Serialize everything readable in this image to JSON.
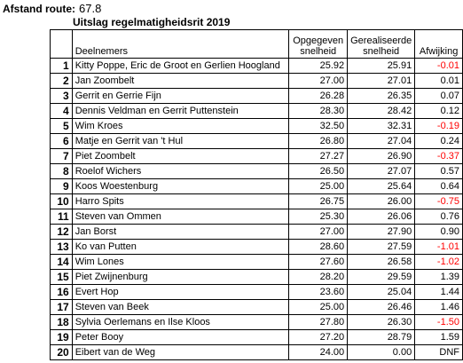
{
  "route": {
    "label": "Afstand route:",
    "value": "67.8"
  },
  "title": "Uitslag regelmatigheidsrit 2019",
  "headers": {
    "participants": "Deelnemers",
    "given_line1": "Opgegeven",
    "given_line2": "snelheid",
    "realized_line1": "Gerealiseerde",
    "realized_line2": "snelheid",
    "deviation": "Afwijking"
  },
  "rows": [
    {
      "rank": "1",
      "name": "Kitty Poppe, Eric de Groot en Gerlien Hoogland",
      "given": "25.92",
      "realized": "25.91",
      "deviation": "-0.01",
      "negative": true
    },
    {
      "rank": "2",
      "name": "Jan Zoombelt",
      "given": "27.00",
      "realized": "27.01",
      "deviation": "0.01",
      "negative": false
    },
    {
      "rank": "3",
      "name": "Gerrit en Gerrie Fijn",
      "given": "26.28",
      "realized": "26.35",
      "deviation": "0.07",
      "negative": false
    },
    {
      "rank": "4",
      "name": "Dennis Veldman en Gerrit Puttenstein",
      "given": "28.30",
      "realized": "28.42",
      "deviation": "0.12",
      "negative": false
    },
    {
      "rank": "5",
      "name": "Wim Kroes",
      "given": "32.50",
      "realized": "32.31",
      "deviation": "-0.19",
      "negative": true
    },
    {
      "rank": "6",
      "name": "Matje en Gerrit van 't Hul",
      "given": "26.80",
      "realized": "27.04",
      "deviation": "0.24",
      "negative": false
    },
    {
      "rank": "7",
      "name": "Piet Zoombelt",
      "given": "27.27",
      "realized": "26.90",
      "deviation": "-0.37",
      "negative": true
    },
    {
      "rank": "8",
      "name": "Roelof Wichers",
      "given": "26.50",
      "realized": "27.07",
      "deviation": "0.57",
      "negative": false
    },
    {
      "rank": "9",
      "name": "Koos Woestenburg",
      "given": "25.00",
      "realized": "25.64",
      "deviation": "0.64",
      "negative": false
    },
    {
      "rank": "10",
      "name": "Harro Spits",
      "given": "26.75",
      "realized": "26.00",
      "deviation": "-0.75",
      "negative": true
    },
    {
      "rank": "11",
      "name": "Steven van Ommen",
      "given": "25.30",
      "realized": "26.06",
      "deviation": "0.76",
      "negative": false
    },
    {
      "rank": "12",
      "name": "Jan Borst",
      "given": "27.00",
      "realized": "27.90",
      "deviation": "0.90",
      "negative": false
    },
    {
      "rank": "13",
      "name": "Ko van Putten",
      "given": "28.60",
      "realized": "27.59",
      "deviation": "-1.01",
      "negative": true
    },
    {
      "rank": "14",
      "name": "Wim Lones",
      "given": "27.60",
      "realized": "26.58",
      "deviation": "-1.02",
      "negative": true
    },
    {
      "rank": "15",
      "name": "Piet Zwijnenburg",
      "given": "28.20",
      "realized": "29.59",
      "deviation": "1.39",
      "negative": false
    },
    {
      "rank": "16",
      "name": "Evert Hop",
      "given": "23.60",
      "realized": "25.04",
      "deviation": "1.44",
      "negative": false
    },
    {
      "rank": "17",
      "name": "Steven van Beek",
      "given": "25.00",
      "realized": "26.46",
      "deviation": "1.46",
      "negative": false
    },
    {
      "rank": "18",
      "name": "Sylvia Oerlemans en Ilse Kloos",
      "given": "27.80",
      "realized": "26.30",
      "deviation": "-1.50",
      "negative": true
    },
    {
      "rank": "19",
      "name": "Peter Booy",
      "given": "27.20",
      "realized": "28.79",
      "deviation": "1.59",
      "negative": false
    },
    {
      "rank": "20",
      "name": "Eibert van de Weg",
      "given": "24.00",
      "realized": "0.00",
      "deviation": "DNF",
      "negative": false
    }
  ],
  "colors": {
    "negative": "#ff0000",
    "text": "#000000"
  }
}
